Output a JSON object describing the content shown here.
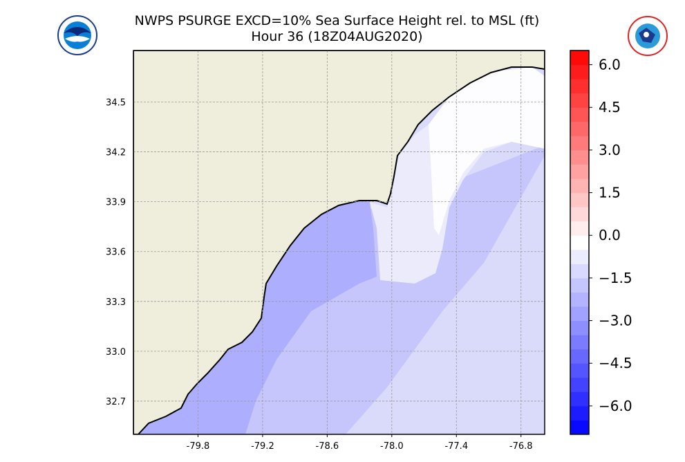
{
  "title": {
    "line1": "NWPS PSURGE EXCD=10% Sea Surface Height rel. to MSL (ft)",
    "line2": "Hour 36 (18Z04AUG2020)"
  },
  "logos": {
    "left": "NOAA",
    "right": "NATIONAL WEATHER SERVICE"
  },
  "map": {
    "lon_range": [
      -80.4,
      -76.58
    ],
    "lat_range": [
      32.5,
      34.81
    ],
    "lon_ticks": [
      "-79.8",
      "-79.2",
      "-78.6",
      "-78.0",
      "-77.4",
      "-76.8"
    ],
    "lat_ticks": [
      "32.7",
      "33.0",
      "33.3",
      "33.6",
      "33.9",
      "34.2",
      "34.5"
    ],
    "land_color": "#efeddb",
    "grid": true
  },
  "colorbar": {
    "range": [
      -7.0,
      6.5
    ],
    "step": 0.5,
    "ticks": [
      "6.0",
      "4.5",
      "3.0",
      "1.5",
      "0.0",
      "−1.5",
      "−3.0",
      "−4.5",
      "−6.0"
    ],
    "tick_values": [
      6.0,
      4.5,
      3.0,
      1.5,
      0.0,
      -1.5,
      -3.0,
      -4.5,
      -6.0
    ],
    "colormap": "bwr"
  }
}
